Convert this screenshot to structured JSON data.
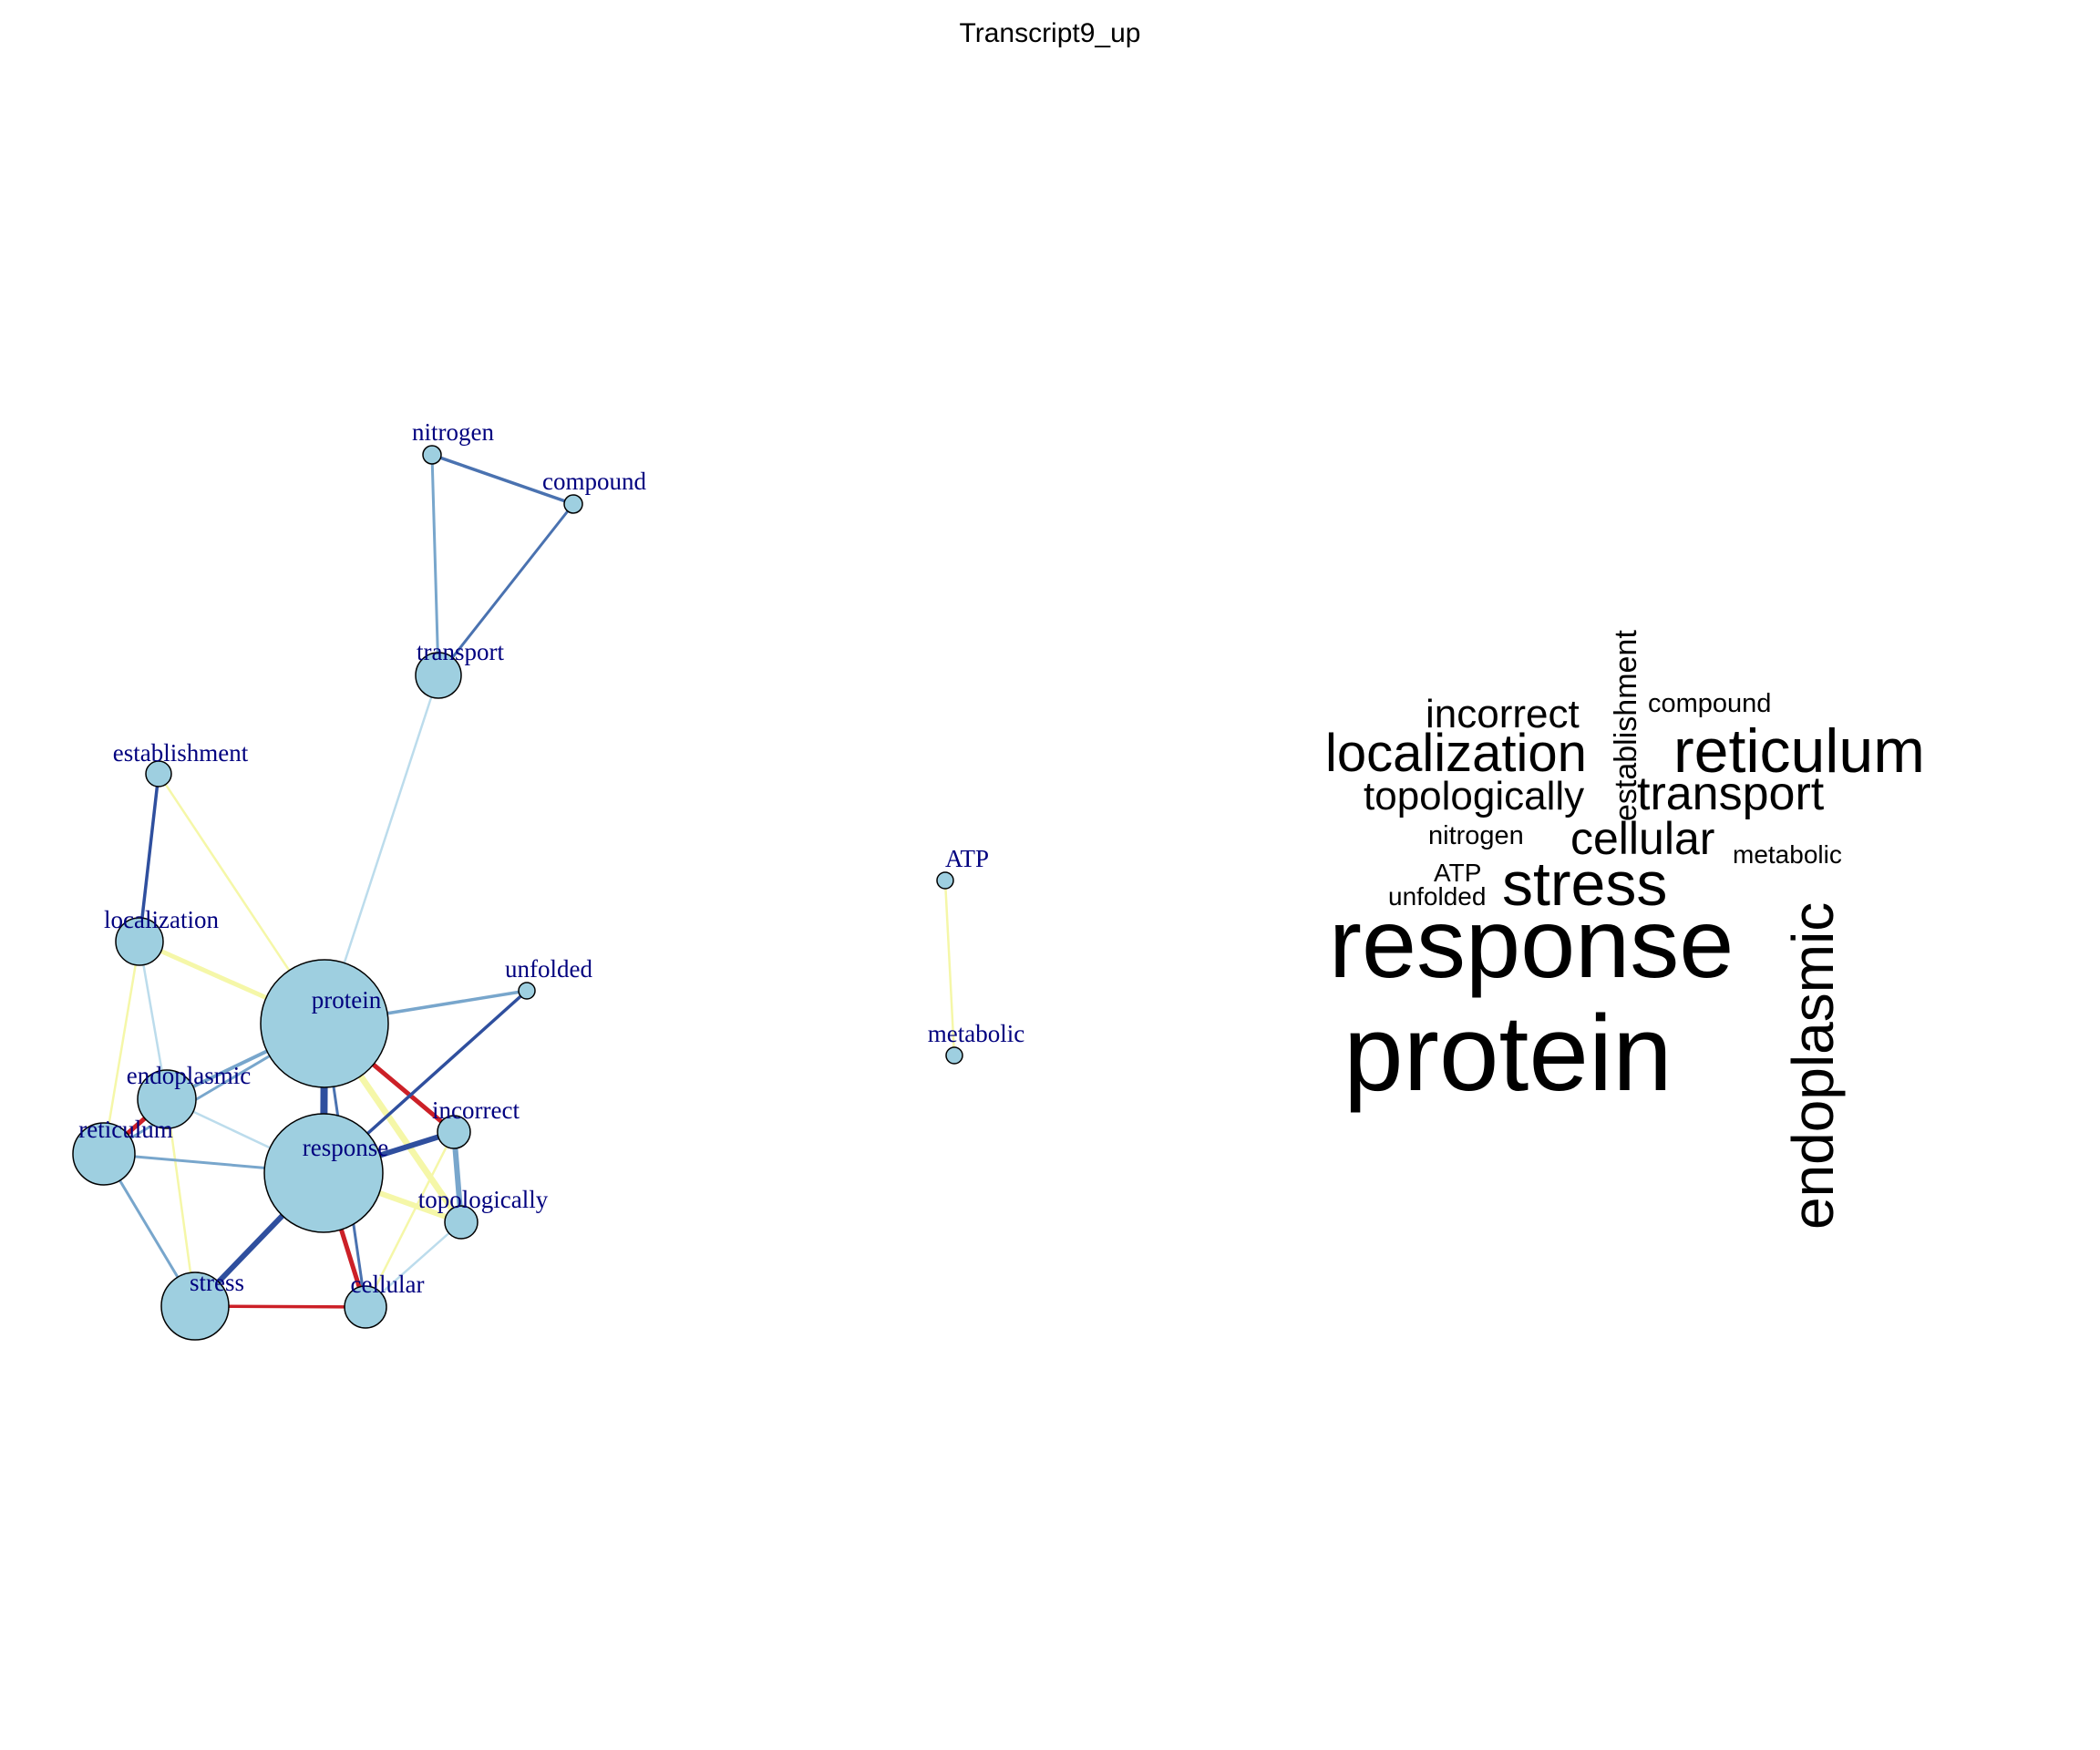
{
  "title": "Transcript9_up",
  "colors": {
    "node_fill": "#9ecfe0",
    "node_stroke": "#000000",
    "label": "#00007f",
    "edge_red": "#cc2027",
    "edge_blue_dark": "#2f4f9e",
    "edge_blue_mid": "#4a72b0",
    "edge_blue_light": "#78a6cc",
    "edge_blue_pale": "#bcdcec",
    "edge_yellow": "#f5f7a8"
  },
  "network": {
    "nodes": [
      {
        "id": "nitrogen",
        "label": "nitrogen"
      },
      {
        "id": "compound",
        "label": "compound"
      },
      {
        "id": "transport",
        "label": "transport"
      },
      {
        "id": "establishment",
        "label": "establishment"
      },
      {
        "id": "localization",
        "label": "localization"
      },
      {
        "id": "protein",
        "label": "protein"
      },
      {
        "id": "unfolded",
        "label": "unfolded"
      },
      {
        "id": "endoplasmic",
        "label": "endoplasmic"
      },
      {
        "id": "reticulum",
        "label": "reticulum"
      },
      {
        "id": "response",
        "label": "response"
      },
      {
        "id": "incorrect",
        "label": "incorrect"
      },
      {
        "id": "topologically",
        "label": "topologically"
      },
      {
        "id": "stress",
        "label": "stress"
      },
      {
        "id": "cellular",
        "label": "cellular"
      },
      {
        "id": "ATP",
        "label": "ATP"
      },
      {
        "id": "metabolic",
        "label": "metabolic"
      }
    ],
    "edges": [
      {
        "source": "nitrogen",
        "target": "compound",
        "color": "blue_mid"
      },
      {
        "source": "nitrogen",
        "target": "transport",
        "color": "blue_light"
      },
      {
        "source": "compound",
        "target": "transport",
        "color": "blue_mid"
      },
      {
        "source": "transport",
        "target": "protein",
        "color": "blue_pale"
      },
      {
        "source": "establishment",
        "target": "localization",
        "color": "blue_dark"
      },
      {
        "source": "establishment",
        "target": "protein",
        "color": "yellow"
      },
      {
        "source": "localization",
        "target": "protein",
        "color": "yellow"
      },
      {
        "source": "localization",
        "target": "endoplasmic",
        "color": "blue_pale"
      },
      {
        "source": "localization",
        "target": "reticulum",
        "color": "yellow"
      },
      {
        "source": "protein",
        "target": "unfolded",
        "color": "blue_light"
      },
      {
        "source": "protein",
        "target": "endoplasmic",
        "color": "blue_light"
      },
      {
        "source": "protein",
        "target": "reticulum",
        "color": "blue_light"
      },
      {
        "source": "protein",
        "target": "response",
        "color": "blue_dark"
      },
      {
        "source": "protein",
        "target": "incorrect",
        "color": "red"
      },
      {
        "source": "protein",
        "target": "topologically",
        "color": "yellow"
      },
      {
        "source": "protein",
        "target": "cellular",
        "color": "blue_mid"
      },
      {
        "source": "unfolded",
        "target": "response",
        "color": "blue_dark"
      },
      {
        "source": "endoplasmic",
        "target": "reticulum",
        "color": "red"
      },
      {
        "source": "endoplasmic",
        "target": "response",
        "color": "blue_pale"
      },
      {
        "source": "endoplasmic",
        "target": "stress",
        "color": "yellow"
      },
      {
        "source": "reticulum",
        "target": "response",
        "color": "blue_light"
      },
      {
        "source": "reticulum",
        "target": "stress",
        "color": "blue_light"
      },
      {
        "source": "response",
        "target": "incorrect",
        "color": "blue_dark"
      },
      {
        "source": "response",
        "target": "topologically",
        "color": "yellow"
      },
      {
        "source": "response",
        "target": "stress",
        "color": "blue_dark"
      },
      {
        "source": "response",
        "target": "cellular",
        "color": "red"
      },
      {
        "source": "incorrect",
        "target": "topologically",
        "color": "blue_light"
      },
      {
        "source": "topologically",
        "target": "cellular",
        "color": "blue_pale"
      },
      {
        "source": "incorrect",
        "target": "cellular",
        "color": "yellow"
      },
      {
        "source": "stress",
        "target": "cellular",
        "color": "red"
      },
      {
        "source": "ATP",
        "target": "metabolic",
        "color": "yellow"
      }
    ]
  },
  "wordcloud": [
    {
      "text": "response",
      "rotated": false
    },
    {
      "text": "protein",
      "rotated": false
    },
    {
      "text": "endoplasmic",
      "rotated": true
    },
    {
      "text": "stress",
      "rotated": false
    },
    {
      "text": "reticulum",
      "rotated": false
    },
    {
      "text": "localization",
      "rotated": false
    },
    {
      "text": "transport",
      "rotated": false
    },
    {
      "text": "incorrect",
      "rotated": false
    },
    {
      "text": "topologically",
      "rotated": false
    },
    {
      "text": "cellular",
      "rotated": false
    },
    {
      "text": "establishment",
      "rotated": true
    },
    {
      "text": "compound",
      "rotated": false
    },
    {
      "text": "nitrogen",
      "rotated": false
    },
    {
      "text": "metabolic",
      "rotated": false
    },
    {
      "text": "ATP",
      "rotated": false
    },
    {
      "text": "unfolded",
      "rotated": false
    }
  ]
}
